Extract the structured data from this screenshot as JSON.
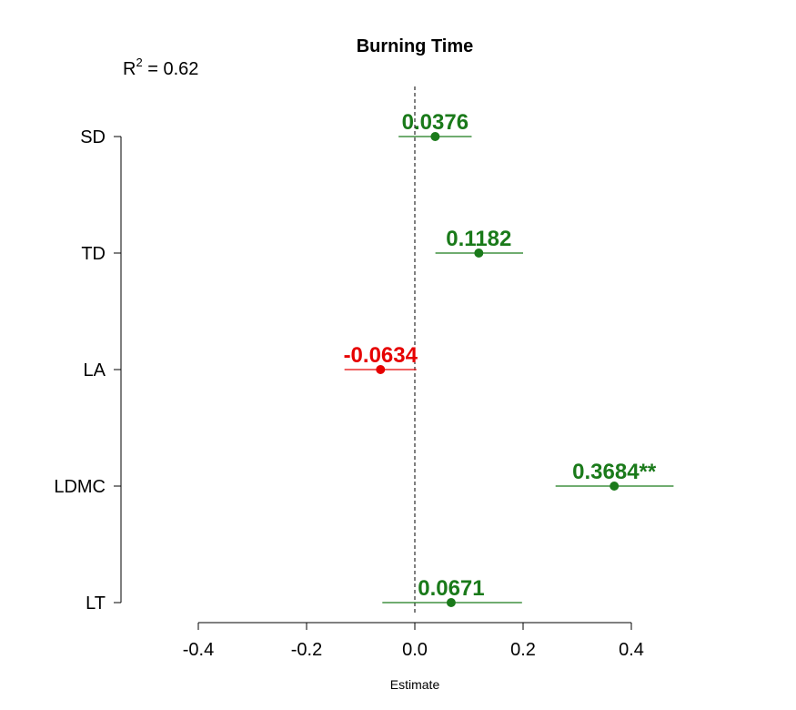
{
  "chart_data": {
    "type": "coefficient-plot",
    "title": "Burning Time",
    "r2_prefix": "R",
    "r2_sup": "2",
    "r2_rest": " = 0.62",
    "xlabel": "Estimate",
    "xlim": [
      -0.4,
      0.4
    ],
    "x_ticks": [
      -0.4,
      -0.2,
      0.0,
      0.2,
      0.4
    ],
    "x_tick_labels": [
      "-0.4",
      "-0.2",
      "0.0",
      "0.2",
      "0.4"
    ],
    "reference_line_x": 0,
    "positive_color": "#1a7a1a",
    "negative_color": "#e60000",
    "terms": [
      {
        "name": "SD",
        "estimate": 0.0376,
        "lower": -0.03,
        "upper": 0.105,
        "label": "0.0376"
      },
      {
        "name": "TD",
        "estimate": 0.1182,
        "lower": 0.038,
        "upper": 0.2,
        "label": "0.1182"
      },
      {
        "name": "LA",
        "estimate": -0.0634,
        "lower": -0.13,
        "upper": 0.003,
        "label": "-0.0634"
      },
      {
        "name": "LDMC",
        "estimate": 0.3684,
        "lower": 0.26,
        "upper": 0.478,
        "label": "0.3684**"
      },
      {
        "name": "LT",
        "estimate": 0.0671,
        "lower": -0.06,
        "upper": 0.198,
        "label": "0.0671"
      }
    ]
  }
}
